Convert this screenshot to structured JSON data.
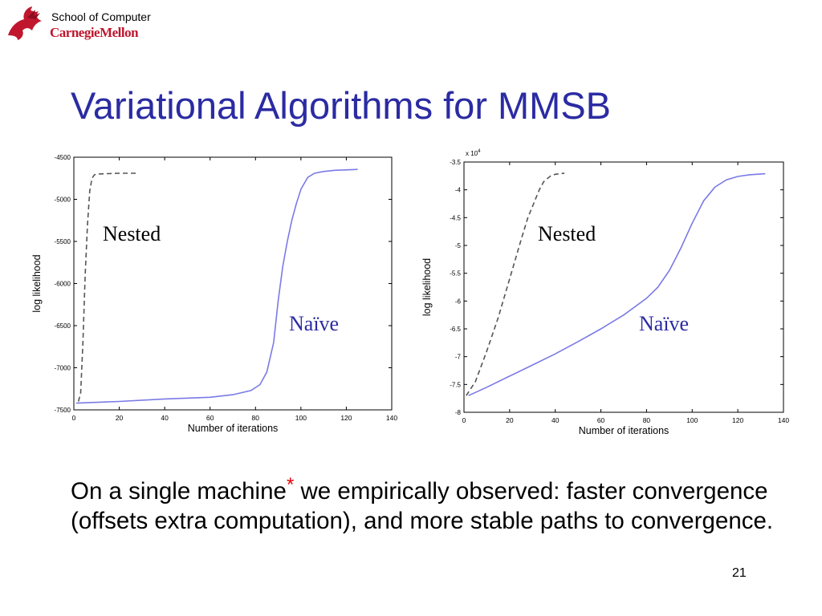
{
  "header": {
    "school_line": "School of Computer",
    "university": "CarnegieMellon"
  },
  "slide": {
    "title": "Variational Algorithms for MMSB",
    "body_before": "On a single machine",
    "asterisk": "*",
    "body_after": " we empirically observed: faster convergence (offsets extra computation), and more stable paths to convergence.",
    "page_number": "21"
  },
  "colors": {
    "title": "#2b2ba3",
    "naive": "#7a7ae6",
    "nested": "#555555",
    "asterisk": "#e30000",
    "logo": "#c0172e"
  },
  "chart_data": [
    {
      "type": "line",
      "xlabel": "Number of iterations",
      "ylabel": "log likelihood",
      "exponent_label": "",
      "xlim": [
        0,
        140
      ],
      "ylim": [
        -7500,
        -4500
      ],
      "xticks": [
        0,
        20,
        40,
        60,
        80,
        100,
        120,
        140
      ],
      "xtick_labels": [
        "0",
        "20",
        "40",
        "60",
        "80",
        "100",
        "120",
        "140"
      ],
      "yticks": [
        -4500,
        -5000,
        -5500,
        -6000,
        -6500,
        -7000,
        -7500
      ],
      "ytick_labels": [
        "-4500",
        "-5000",
        "-5500",
        "-6000",
        "-6500",
        "-7000",
        "-7500"
      ],
      "annotations": [
        {
          "text": "Nested",
          "series": "nested"
        },
        {
          "text": "Naïve",
          "series": "naive"
        }
      ],
      "series": [
        {
          "key": "naive",
          "style": "solid",
          "x": [
            1,
            20,
            40,
            60,
            70,
            78,
            82,
            85,
            88,
            90,
            92,
            94,
            96,
            98,
            100,
            103,
            106,
            110,
            115,
            120,
            125
          ],
          "y": [
            -7420,
            -7400,
            -7370,
            -7350,
            -7320,
            -7270,
            -7200,
            -7050,
            -6700,
            -6200,
            -5800,
            -5500,
            -5250,
            -5050,
            -4880,
            -4740,
            -4690,
            -4670,
            -4655,
            -4650,
            -4645
          ]
        },
        {
          "key": "nested",
          "style": "dashed",
          "x": [
            2,
            3,
            4,
            5,
            6,
            7,
            8,
            9,
            10,
            15,
            20,
            28
          ],
          "y": [
            -7400,
            -7300,
            -6700,
            -5900,
            -5300,
            -4900,
            -4750,
            -4710,
            -4700,
            -4695,
            -4690,
            -4690
          ]
        }
      ]
    },
    {
      "type": "line",
      "xlabel": "Number of iterations",
      "ylabel": "log likelihood",
      "exponent_label": "x 10",
      "exponent_power": "4",
      "xlim": [
        0,
        140
      ],
      "ylim": [
        -8,
        -3.5
      ],
      "xticks": [
        0,
        20,
        40,
        60,
        80,
        100,
        120,
        140
      ],
      "xtick_labels": [
        "0",
        "20",
        "40",
        "60",
        "80",
        "100",
        "120",
        "140"
      ],
      "yticks": [
        -3.5,
        -4,
        -4.5,
        -5,
        -5.5,
        -6,
        -6.5,
        -7,
        -7.5,
        -8
      ],
      "ytick_labels": [
        "-3.5",
        "-4",
        "-4.5",
        "-5",
        "-5.5",
        "-6",
        "-6.5",
        "-7",
        "-7.5",
        "-8"
      ],
      "annotations": [
        {
          "text": "Nested",
          "series": "nested"
        },
        {
          "text": "Naïve",
          "series": "naive"
        }
      ],
      "series": [
        {
          "key": "naive",
          "style": "solid",
          "x": [
            2,
            10,
            20,
            30,
            40,
            50,
            60,
            70,
            80,
            85,
            90,
            95,
            100,
            105,
            110,
            115,
            120,
            125,
            132
          ],
          "y": [
            -7.7,
            -7.55,
            -7.35,
            -7.15,
            -6.95,
            -6.73,
            -6.5,
            -6.25,
            -5.95,
            -5.75,
            -5.45,
            -5.05,
            -4.6,
            -4.2,
            -3.95,
            -3.82,
            -3.76,
            -3.73,
            -3.71
          ]
        },
        {
          "key": "nested",
          "style": "dashed",
          "x": [
            1,
            5,
            10,
            15,
            20,
            25,
            28,
            30,
            33,
            35,
            38,
            40,
            44
          ],
          "y": [
            -7.7,
            -7.45,
            -6.9,
            -6.3,
            -5.6,
            -4.9,
            -4.5,
            -4.3,
            -4.0,
            -3.85,
            -3.75,
            -3.72,
            -3.7
          ]
        }
      ]
    }
  ]
}
